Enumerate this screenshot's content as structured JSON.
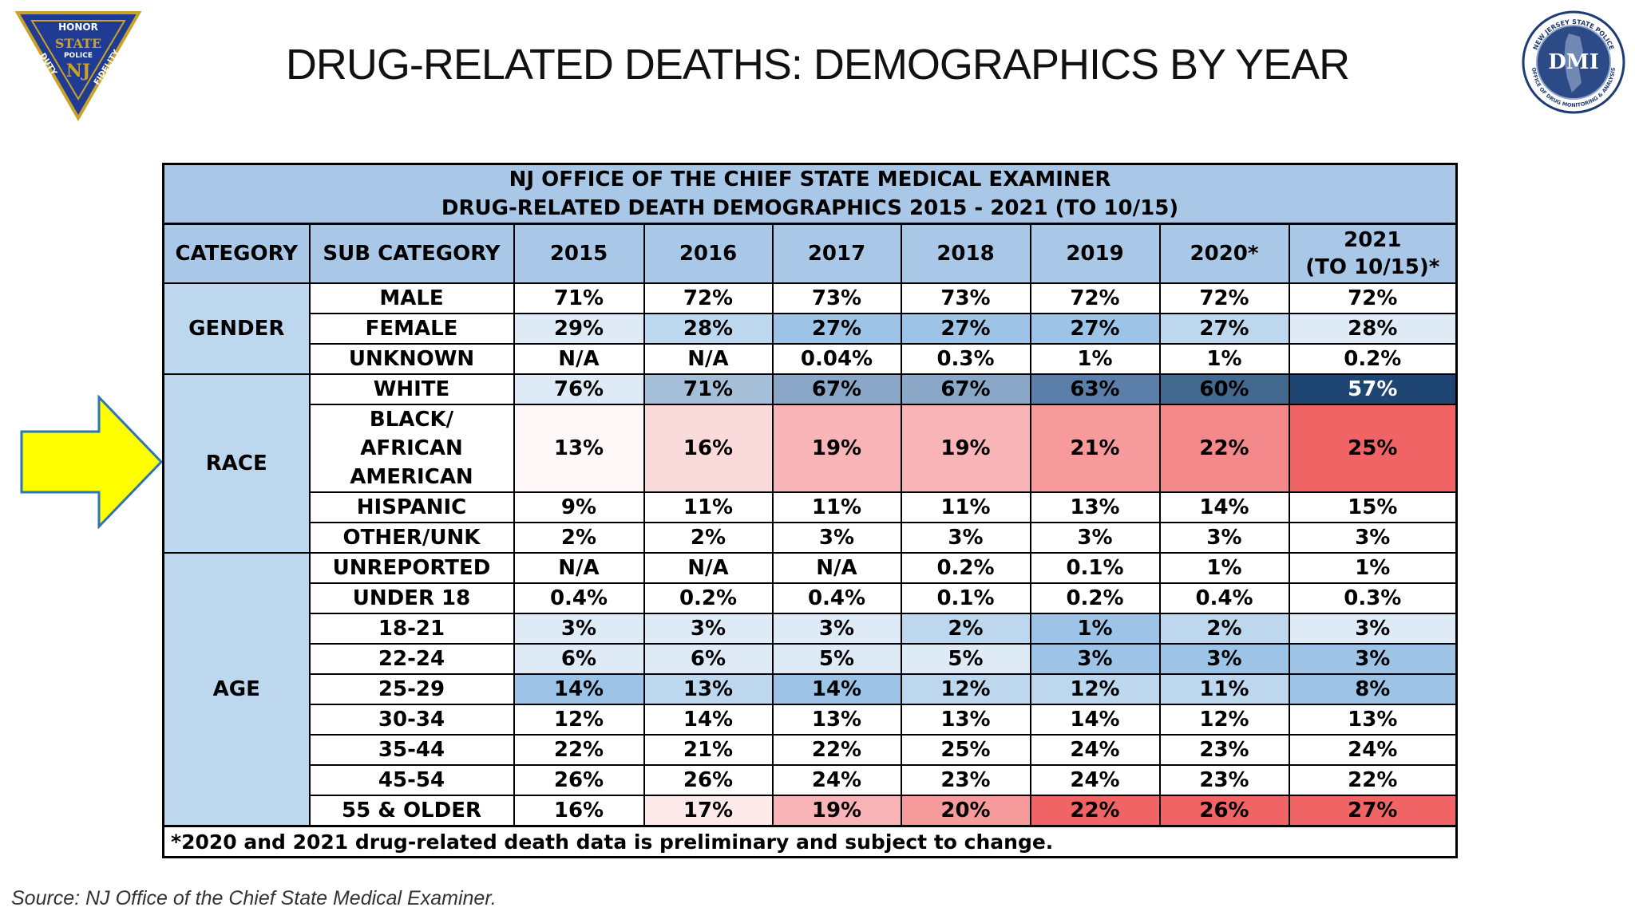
{
  "slide": {
    "title": "DRUG-RELATED DEATHS: DEMOGRAPHICS BY YEAR",
    "source": "Source: NJ Office of the Chief State Medical Examiner.",
    "left_logo": {
      "icon": "nj-state-police-badge",
      "text": [
        "HONOR",
        "STATE",
        "POLICE",
        "NJ",
        "DUTY",
        "FIDELITY"
      ]
    },
    "right_logo": {
      "icon": "dmi-seal",
      "text": [
        "NEW JERSEY STATE POLICE",
        "DMI",
        "OFFICE OF DRUG MONITORING & ANALYSIS"
      ]
    }
  },
  "table": {
    "title_line1": "NJ OFFICE OF THE CHIEF STATE MEDICAL EXAMINER",
    "title_line2": "DRUG-RELATED DEATH DEMOGRAPHICS 2015 - 2021 (TO 10/15)",
    "col_category": "CATEGORY",
    "col_subcategory": "SUB CATEGORY",
    "years": [
      "2015",
      "2016",
      "2017",
      "2018",
      "2019",
      "2020*",
      "2021 (TO 10/15)*"
    ],
    "year_2021_line1": "2021",
    "year_2021_line2": "(TO 10/15)*",
    "groups": {
      "gender": "GENDER",
      "race": "RACE",
      "age": "AGE"
    },
    "rows": [
      {
        "sub": "MALE",
        "values": [
          "71%",
          "72%",
          "73%",
          "73%",
          "72%",
          "72%",
          "72%"
        ],
        "colors": [
          "#fff",
          "#fff",
          "#fff",
          "#fff",
          "#fff",
          "#fff",
          "#fff"
        ]
      },
      {
        "sub": "FEMALE",
        "values": [
          "29%",
          "28%",
          "27%",
          "27%",
          "27%",
          "27%",
          "28%"
        ],
        "colors": [
          "#deebf7",
          "#bdd7ee",
          "#9dc3e6",
          "#9dc3e6",
          "#9dc3e6",
          "#bdd7ee",
          "#deebf7"
        ]
      },
      {
        "sub": "UNKNOWN",
        "values": [
          "N/A",
          "N/A",
          "0.04%",
          "0.3%",
          "1%",
          "1%",
          "0.2%"
        ],
        "colors": [
          "#fff",
          "#fff",
          "#fff",
          "#fff",
          "#fff",
          "#fff",
          "#fff"
        ]
      },
      {
        "sub": "WHITE",
        "values": [
          "76%",
          "71%",
          "67%",
          "67%",
          "63%",
          "60%",
          "57%"
        ],
        "colors": [
          "#deebf7",
          "#a6bfd8",
          "#8aa7c8",
          "#8aa7c8",
          "#5b7fa8",
          "#44698f",
          "#1f4672"
        ]
      },
      {
        "sub": "BLACK/ AFRICAN AMERICAN",
        "values": [
          "13%",
          "16%",
          "19%",
          "19%",
          "21%",
          "22%",
          "25%"
        ],
        "colors": [
          "#fef7f7",
          "#fbdadc",
          "#f8b4b6",
          "#f8b4b6",
          "#f79a9c",
          "#f3898b",
          "#f06466"
        ]
      },
      {
        "sub": "HISPANIC",
        "values": [
          "9%",
          "11%",
          "11%",
          "11%",
          "13%",
          "14%",
          "15%"
        ],
        "colors": [
          "#fff",
          "#fff",
          "#fff",
          "#fff",
          "#fff",
          "#fff",
          "#fff"
        ]
      },
      {
        "sub": "OTHER/UNK",
        "values": [
          "2%",
          "2%",
          "3%",
          "3%",
          "3%",
          "3%",
          "3%"
        ],
        "colors": [
          "#fff",
          "#fff",
          "#fff",
          "#fff",
          "#fff",
          "#fff",
          "#fff"
        ]
      },
      {
        "sub": "UNREPORTED",
        "values": [
          "N/A",
          "N/A",
          "N/A",
          "0.2%",
          "0.1%",
          "1%",
          "1%"
        ],
        "colors": [
          "#fff",
          "#fff",
          "#fff",
          "#fff",
          "#fff",
          "#fff",
          "#fff"
        ]
      },
      {
        "sub": "UNDER 18",
        "values": [
          "0.4%",
          "0.2%",
          "0.4%",
          "0.1%",
          "0.2%",
          "0.4%",
          "0.3%"
        ],
        "colors": [
          "#fff",
          "#fff",
          "#fff",
          "#fff",
          "#fff",
          "#fff",
          "#fff"
        ]
      },
      {
        "sub": "18-21",
        "values": [
          "3%",
          "3%",
          "3%",
          "2%",
          "1%",
          "2%",
          "3%"
        ],
        "colors": [
          "#deebf7",
          "#deebf7",
          "#deebf7",
          "#bdd7ee",
          "#9dc3e6",
          "#bdd7ee",
          "#deebf7"
        ]
      },
      {
        "sub": "22-24",
        "values": [
          "6%",
          "6%",
          "5%",
          "5%",
          "3%",
          "3%",
          "3%"
        ],
        "colors": [
          "#deebf7",
          "#deebf7",
          "#deebf7",
          "#deebf7",
          "#9dc3e6",
          "#9dc3e6",
          "#9dc3e6"
        ]
      },
      {
        "sub": "25-29",
        "values": [
          "14%",
          "13%",
          "14%",
          "12%",
          "12%",
          "11%",
          "8%"
        ],
        "colors": [
          "#9dc3e6",
          "#bdd7ee",
          "#9dc3e6",
          "#bdd7ee",
          "#bdd7ee",
          "#bdd7ee",
          "#9dc3e6"
        ]
      },
      {
        "sub": "30-34",
        "values": [
          "12%",
          "14%",
          "13%",
          "13%",
          "14%",
          "12%",
          "13%"
        ],
        "colors": [
          "#fff",
          "#fff",
          "#fff",
          "#fff",
          "#fff",
          "#fff",
          "#fff"
        ]
      },
      {
        "sub": "35-44",
        "values": [
          "22%",
          "21%",
          "22%",
          "25%",
          "24%",
          "23%",
          "24%"
        ],
        "colors": [
          "#fff",
          "#fff",
          "#fff",
          "#fff",
          "#fff",
          "#fff",
          "#fff"
        ]
      },
      {
        "sub": "45-54",
        "values": [
          "26%",
          "26%",
          "24%",
          "23%",
          "24%",
          "23%",
          "22%"
        ],
        "colors": [
          "#fff",
          "#fff",
          "#fff",
          "#fff",
          "#fff",
          "#fff",
          "#fff"
        ]
      },
      {
        "sub": "55 & OLDER",
        "values": [
          "16%",
          "17%",
          "19%",
          "20%",
          "22%",
          "26%",
          "27%"
        ],
        "colors": [
          "#fff",
          "#fde9ea",
          "#f8b4b6",
          "#f79a9c",
          "#f06466",
          "#f06466",
          "#f06466"
        ]
      }
    ],
    "footnote": "*2020 and 2021 drug-related death data is preliminary and subject to change."
  },
  "arrow": {
    "color": "#ffff00",
    "stroke": "#2e75b6",
    "icon": "right-arrow-icon"
  }
}
